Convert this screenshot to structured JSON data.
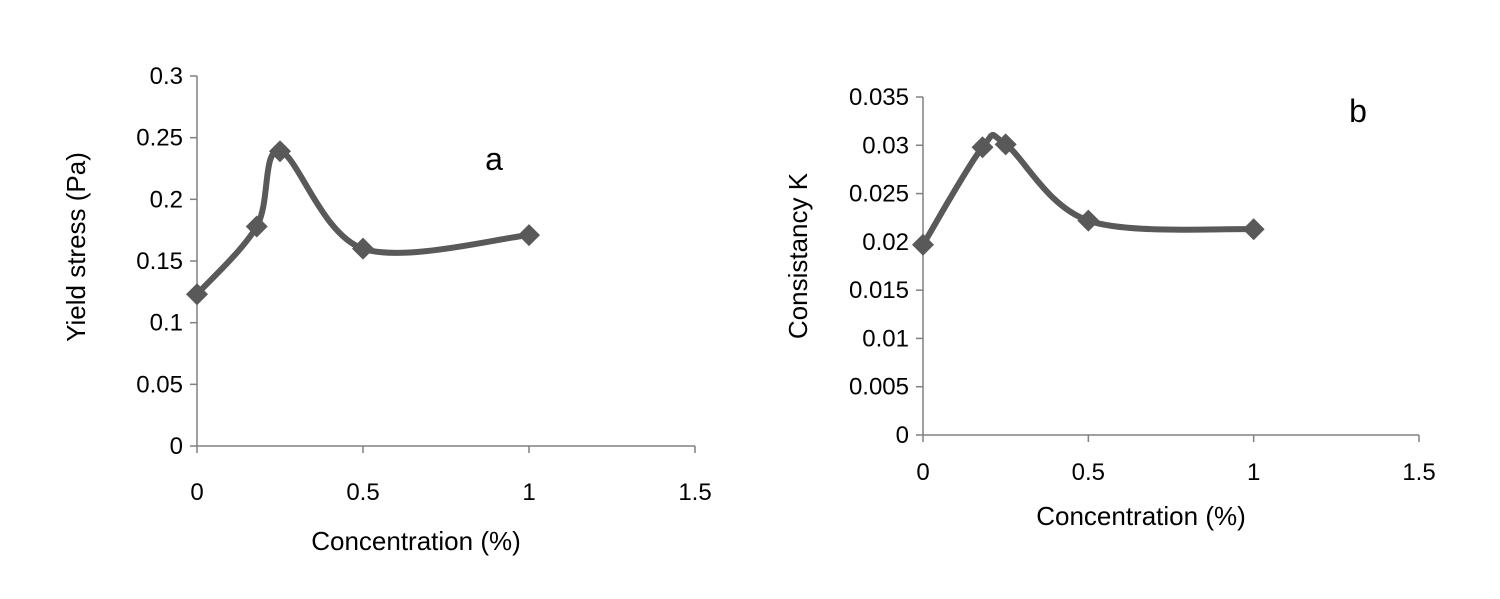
{
  "colors": {
    "series": "#595959",
    "axis": "#808080",
    "text": "#000000"
  },
  "chart_data": [
    {
      "type": "line",
      "smooth": true,
      "marker": "diamond",
      "panel_label": "a",
      "xlabel": "Concentration (%)",
      "ylabel": "Yield stress (Pa)",
      "xlim": [
        0,
        1.5
      ],
      "ylim": [
        0,
        0.3
      ],
      "x_ticks": [
        0,
        0.5,
        1,
        1.5
      ],
      "x_tick_labels": [
        "0",
        "0.5",
        "1",
        "1.5"
      ],
      "y_ticks": [
        0,
        0.05,
        0.1,
        0.15,
        0.2,
        0.25,
        0.3
      ],
      "y_tick_labels": [
        "0",
        "0.05",
        "0.1",
        "0.15",
        "0.2",
        "0.25",
        "0.3"
      ],
      "grid": false,
      "series": [
        {
          "x": [
            0,
            0.18,
            0.25,
            0.5,
            1
          ],
          "y": [
            0.123,
            0.178,
            0.239,
            0.16,
            0.171
          ]
        }
      ]
    },
    {
      "type": "line",
      "smooth": true,
      "marker": "diamond",
      "panel_label": "b",
      "xlabel": "Concentration (%)",
      "ylabel": "Consistancy K",
      "xlim": [
        0,
        1.5
      ],
      "ylim": [
        0,
        0.035
      ],
      "x_ticks": [
        0,
        0.5,
        1,
        1.5
      ],
      "x_tick_labels": [
        "0",
        "0.5",
        "1",
        "1.5"
      ],
      "y_ticks": [
        0,
        0.005,
        0.01,
        0.015,
        0.02,
        0.025,
        0.03,
        0.035
      ],
      "y_tick_labels": [
        "0",
        "0.005",
        "0.01",
        "0.015",
        "0.02",
        "0.025",
        "0.03",
        "0.035"
      ],
      "grid": false,
      "series": [
        {
          "x": [
            0,
            0.18,
            0.25,
            0.5,
            1
          ],
          "y": [
            0.0197,
            0.0298,
            0.0301,
            0.0222,
            0.0213
          ]
        }
      ]
    }
  ]
}
